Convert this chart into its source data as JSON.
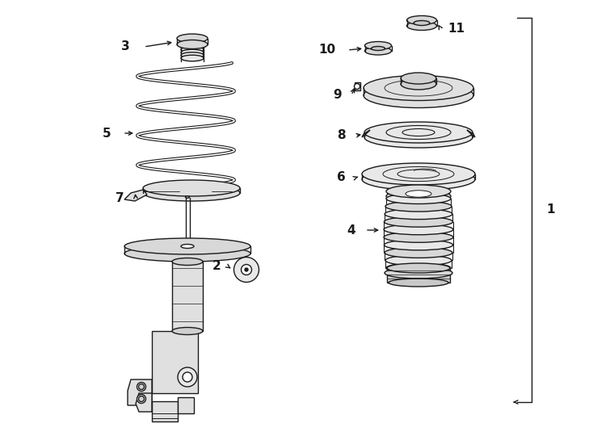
{
  "bg_color": "#ffffff",
  "line_color": "#1a1a1a",
  "lw": 1.0,
  "fig_w": 7.34,
  "fig_h": 5.4,
  "xlim": [
    0,
    7.34
  ],
  "ylim": [
    0,
    5.4
  ]
}
